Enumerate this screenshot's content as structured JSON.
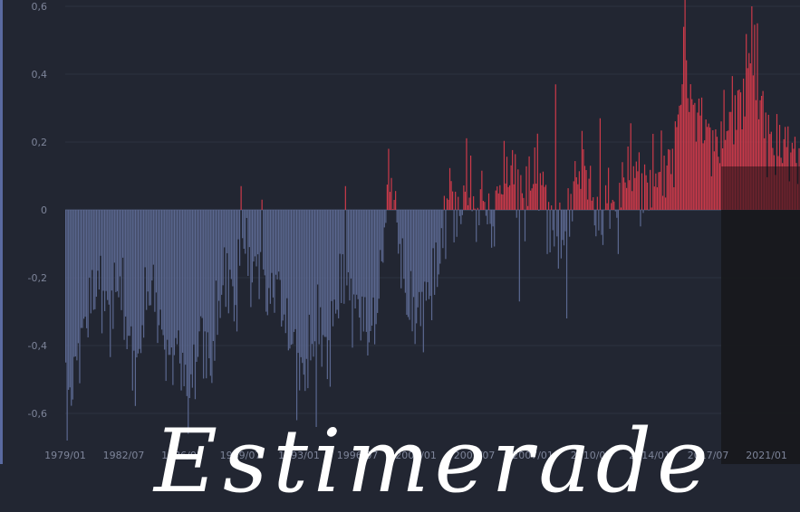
{
  "overlay_text": "Estimerade",
  "chart_data": {
    "type": "bar",
    "title": "",
    "xlabel": "",
    "ylabel": "",
    "ylim": [
      -0.72,
      0.62
    ],
    "yticks": [
      "0,6",
      "0,4",
      "0,2",
      "0",
      "-0,2",
      "-0,4",
      "-0,6"
    ],
    "ytick_values": [
      0.6,
      0.4,
      0.2,
      0,
      -0.2,
      -0.4,
      -0.6
    ],
    "xticks": [
      "1979/01",
      "1982/07",
      "1986/01",
      "1989/07",
      "1993/01",
      "1996/07",
      "2000/01",
      "2003/07",
      "2007/01",
      "2010/07",
      "2014/01",
      "2017/07",
      "2021/01"
    ],
    "x_start": "1979/01",
    "x_end": "2022/12",
    "frequency": "monthly",
    "colors": {
      "positive": "#cc3a4a",
      "negative": "#5b6890",
      "grid": "#2c3140",
      "zero": "#4a5470"
    },
    "anchors": [
      [
        "1979/01",
        -0.45
      ],
      [
        "1979/04",
        -0.55
      ],
      [
        "1979/10",
        -0.42
      ],
      [
        "1980/06",
        -0.28
      ],
      [
        "1981/01",
        -0.22
      ],
      [
        "1981/09",
        -0.32
      ],
      [
        "1982/03",
        -0.2
      ],
      [
        "1982/10",
        -0.38
      ],
      [
        "1983/04",
        -0.5
      ],
      [
        "1983/09",
        -0.3
      ],
      [
        "1984/03",
        -0.22
      ],
      [
        "1984/09",
        -0.35
      ],
      [
        "1985/03",
        -0.45
      ],
      [
        "1985/10",
        -0.4
      ],
      [
        "1986/04",
        -0.55
      ],
      [
        "1986/09",
        -0.5
      ],
      [
        "1987/02",
        -0.35
      ],
      [
        "1987/09",
        -0.48
      ],
      [
        "1988/03",
        -0.28
      ],
      [
        "1988/09",
        -0.18
      ],
      [
        "1989/03",
        -0.3
      ],
      [
        "1989/08",
        -0.05
      ],
      [
        "1990/02",
        -0.2
      ],
      [
        "1990/08",
        -0.15
      ],
      [
        "1991/03",
        -0.28
      ],
      [
        "1991/09",
        -0.2
      ],
      [
        "1992/03",
        -0.35
      ],
      [
        "1992/09",
        -0.4
      ],
      [
        "1993/03",
        -0.5
      ],
      [
        "1993/09",
        -0.42
      ],
      [
        "1994/03",
        -0.32
      ],
      [
        "1994/09",
        -0.45
      ],
      [
        "1995/03",
        -0.28
      ],
      [
        "1995/09",
        -0.2
      ],
      [
        "1996/03",
        -0.28
      ],
      [
        "1996/09",
        -0.3
      ],
      [
        "1997/03",
        -0.38
      ],
      [
        "1997/09",
        -0.3
      ],
      [
        "1998/02",
        -0.05
      ],
      [
        "1998/06",
        0.12
      ],
      [
        "1998/12",
        -0.08
      ],
      [
        "1999/06",
        -0.28
      ],
      [
        "2000/01",
        -0.32
      ],
      [
        "2000/07",
        -0.28
      ],
      [
        "2001/01",
        -0.22
      ],
      [
        "2001/07",
        -0.12
      ],
      [
        "2002/01",
        0.08
      ],
      [
        "2002/07",
        -0.05
      ],
      [
        "2003/01",
        0.1
      ],
      [
        "2003/07",
        -0.04
      ],
      [
        "2004/01",
        0.06
      ],
      [
        "2004/07",
        -0.08
      ],
      [
        "2005/01",
        0.08
      ],
      [
        "2005/07",
        0.12
      ],
      [
        "2006/01",
        0.1
      ],
      [
        "2006/07",
        0.02
      ],
      [
        "2007/01",
        0.12
      ],
      [
        "2007/07",
        0.1
      ],
      [
        "2008/01",
        -0.06
      ],
      [
        "2008/07",
        -0.12
      ],
      [
        "2009/01",
        -0.04
      ],
      [
        "2009/07",
        0.08
      ],
      [
        "2010/01",
        0.16
      ],
      [
        "2010/07",
        0.04
      ],
      [
        "2011/01",
        -0.08
      ],
      [
        "2011/07",
        0.06
      ],
      [
        "2012/01",
        -0.04
      ],
      [
        "2012/07",
        0.12
      ],
      [
        "2013/01",
        0.14
      ],
      [
        "2013/07",
        0.06
      ],
      [
        "2014/01",
        0.08
      ],
      [
        "2014/07",
        0.12
      ],
      [
        "2015/01",
        0.12
      ],
      [
        "2015/07",
        0.18
      ],
      [
        "2016/01",
        0.45
      ],
      [
        "2016/07",
        0.3
      ],
      [
        "2017/01",
        0.28
      ],
      [
        "2017/07",
        0.22
      ],
      [
        "2018/01",
        0.18
      ],
      [
        "2018/07",
        0.25
      ],
      [
        "2019/01",
        0.3
      ],
      [
        "2019/07",
        0.32
      ],
      [
        "2020/01",
        0.48
      ],
      [
        "2020/07",
        0.35
      ],
      [
        "2021/01",
        0.22
      ],
      [
        "2021/07",
        0.18
      ],
      [
        "2022/01",
        0.2
      ],
      [
        "2022/12",
        0.15
      ]
    ],
    "spikes": [
      [
        "1979/02",
        -0.68
      ],
      [
        "1986/05",
        -0.66
      ],
      [
        "1989/07",
        0.07
      ],
      [
        "1990/10",
        0.03
      ],
      [
        "1992/11",
        -0.62
      ],
      [
        "1994/01",
        -0.64
      ],
      [
        "1995/10",
        0.07
      ],
      [
        "1998/05",
        0.18
      ],
      [
        "2003/04",
        0.16
      ],
      [
        "2006/03",
        -0.27
      ],
      [
        "2008/05",
        0.37
      ],
      [
        "2009/01",
        -0.32
      ],
      [
        "2011/01",
        0.27
      ],
      [
        "2016/02",
        0.63
      ],
      [
        "2020/02",
        0.6
      ],
      [
        "2020/06",
        0.55
      ]
    ]
  }
}
